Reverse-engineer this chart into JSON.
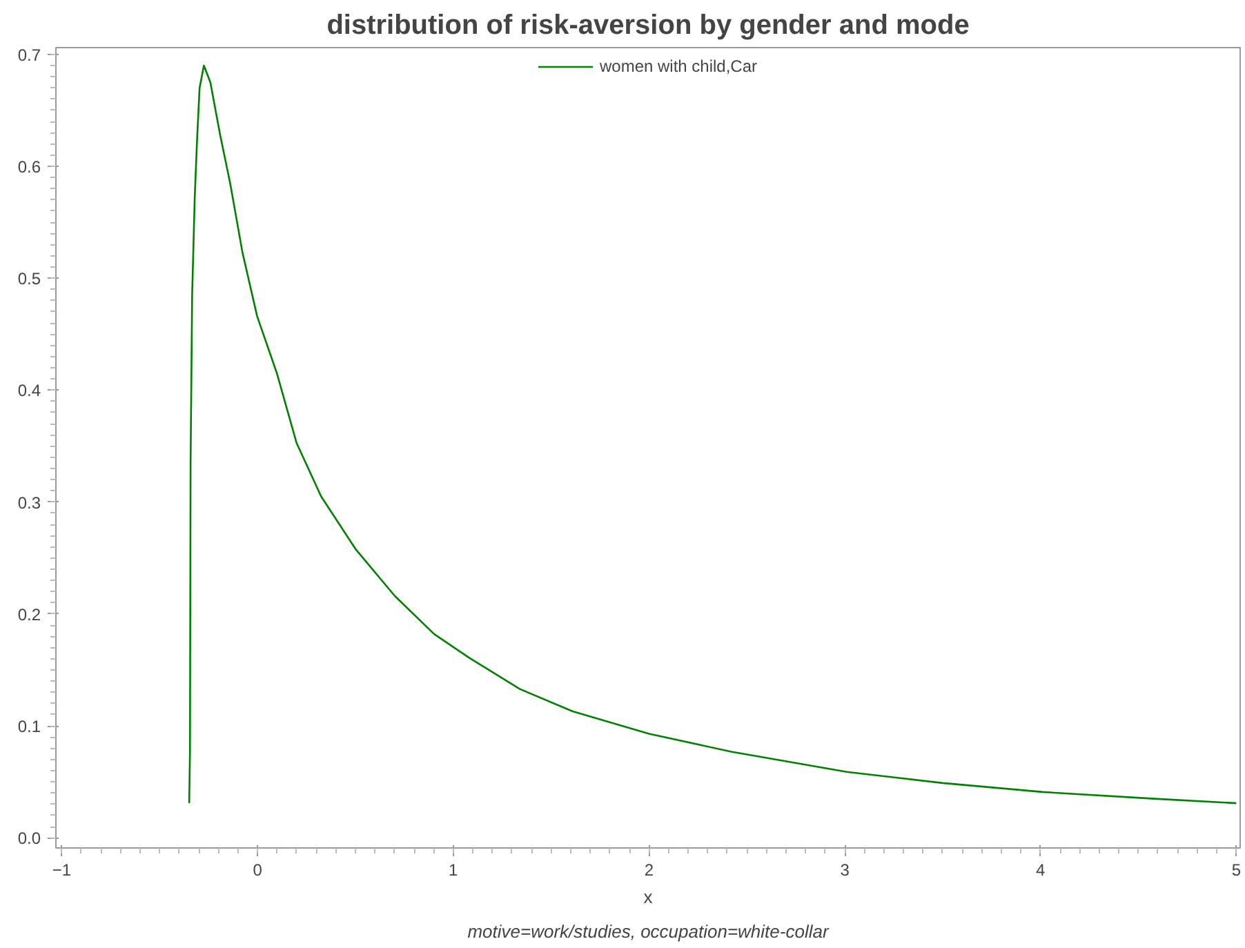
{
  "chart_data": {
    "type": "line",
    "title": "distribution of risk-aversion by gender and mode",
    "xlabel": "x",
    "annotations": [
      "motive=work/studies, occupation=white-collar"
    ],
    "series": [
      {
        "name": "women with child,Car",
        "color": "#008000",
        "x": [
          -0.349,
          -0.345,
          -0.342,
          -0.334,
          -0.321,
          -0.309,
          -0.296,
          -0.274,
          -0.241,
          -0.191,
          -0.14,
          -0.077,
          -0.002,
          0.099,
          0.199,
          0.325,
          0.501,
          0.702,
          0.903,
          1.08,
          1.34,
          1.61,
          2.0,
          2.42,
          3.01,
          3.5,
          4.01,
          4.58,
          5.0
        ],
        "values": [
          0.031,
          0.078,
          0.334,
          0.485,
          0.571,
          0.623,
          0.67,
          0.69,
          0.675,
          0.628,
          0.585,
          0.523,
          0.466,
          0.415,
          0.353,
          0.305,
          0.258,
          0.216,
          0.182,
          0.161,
          0.133,
          0.113,
          0.093,
          0.077,
          0.059,
          0.049,
          0.041,
          0.035,
          0.031
        ]
      }
    ],
    "xlim": [
      -1.03,
      5.02
    ],
    "ylim": [
      -0.009,
      0.706
    ],
    "xticks": [
      -1,
      0,
      1,
      2,
      3,
      4,
      5
    ],
    "yticks": [
      {
        "value": 0,
        "label": "0.0"
      },
      {
        "value": 0.1,
        "label": "0.1"
      },
      {
        "value": 0.2,
        "label": "0.2"
      },
      {
        "value": 0.3,
        "label": "0.3"
      },
      {
        "value": 0.4,
        "label": "0.4"
      },
      {
        "value": 0.5,
        "label": "0.5"
      },
      {
        "value": 0.6,
        "label": "0.6"
      },
      {
        "value": 0.7,
        "label": "0.7"
      }
    ],
    "grid": false,
    "legend": "top",
    "marker": "none",
    "line_style": "solid"
  }
}
